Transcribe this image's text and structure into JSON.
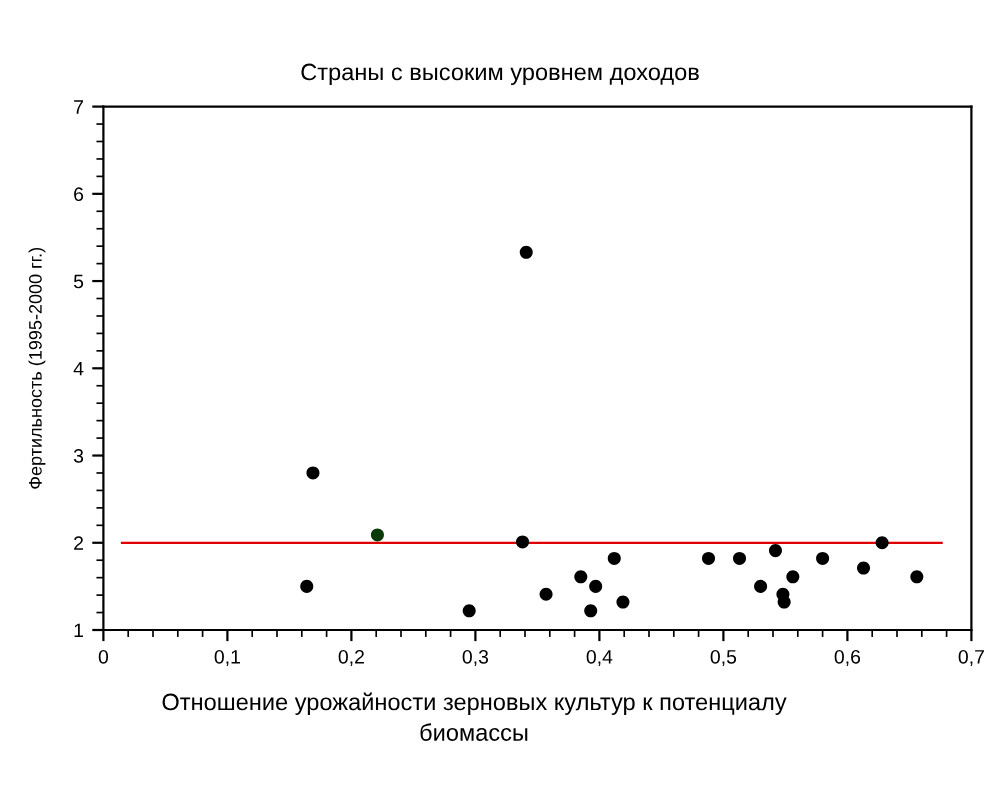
{
  "chart_data": {
    "type": "scatter",
    "title": "Страны с высоким уровнем доходов",
    "xlabel": "Отношение урожайности зерновых культур к потенциалу\nбиомассы",
    "ylabel": "Фертильность (1995-2000 гг.)",
    "xlim": [
      0,
      0.7
    ],
    "xticks": [
      0,
      {
        "value": 0.1,
        "label": "0,1"
      },
      {
        "value": 0.2,
        "label": "0,2"
      },
      {
        "value": 0.3,
        "label": "0,3"
      },
      {
        "value": 0.4,
        "label": "0,4"
      },
      {
        "value": 0.5,
        "label": "0,5"
      },
      {
        "value": 0.6,
        "label": "0,6"
      },
      {
        "value": 0.7,
        "label": "0,7"
      }
    ],
    "ylim": [
      1,
      7
    ],
    "yticks": [
      1,
      2,
      3,
      4,
      5,
      6,
      7
    ],
    "grid": false,
    "legend": false,
    "marker": "circle",
    "series": [
      {
        "x": [
          0.341,
          0.169,
          0.221,
          0.338,
          0.164,
          0.295,
          0.357,
          0.385,
          0.397,
          0.393,
          0.412,
          0.419,
          0.488,
          0.513,
          0.53,
          0.542,
          0.548,
          0.549,
          0.556,
          0.58,
          0.613,
          0.628,
          0.656
        ],
        "values": [
          5.33,
          2.8,
          2.09,
          2.01,
          1.5,
          1.22,
          1.41,
          1.61,
          1.5,
          1.22,
          1.82,
          1.32,
          1.82,
          1.82,
          1.5,
          1.91,
          1.41,
          1.32,
          1.61,
          1.82,
          1.71,
          2.0,
          1.61
        ],
        "colors": [
          "#000000",
          "#000000",
          "#0a3a0a",
          "#000000",
          "#000000",
          "#000000",
          "#000000",
          "#000000",
          "#000000",
          "#000000",
          "#000000",
          "#000000",
          "#000000",
          "#000000",
          "#000000",
          "#000000",
          "#000000",
          "#000000",
          "#000000",
          "#000000",
          "#000000",
          "#000000",
          "#000000"
        ]
      },
      {
        "type": "line",
        "x": [
          0.015,
          0.676
        ],
        "values": [
          2,
          2
        ],
        "color": "#e00000",
        "line_style": "solid",
        "marker": "none"
      }
    ]
  }
}
